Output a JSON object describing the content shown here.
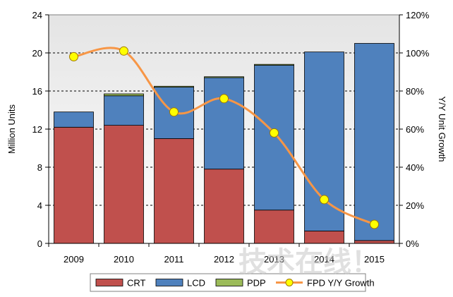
{
  "chart_data": {
    "type": "bar",
    "subtype": "stacked-with-line",
    "categories": [
      "2009",
      "2010",
      "2011",
      "2012",
      "2013",
      "2014",
      "2015"
    ],
    "series": [
      {
        "name": "CRT",
        "color": "#c0504d",
        "values": [
          12.2,
          12.4,
          11.0,
          7.8,
          3.5,
          1.3,
          0.3
        ]
      },
      {
        "name": "LCD",
        "color": "#4f81bd",
        "values": [
          1.6,
          3.1,
          5.4,
          9.6,
          15.2,
          18.8,
          20.7
        ]
      },
      {
        "name": "PDP",
        "color": "#9bbb59",
        "values": [
          0.0,
          0.2,
          0.1,
          0.1,
          0.1,
          0.0,
          0.0
        ]
      }
    ],
    "line_series": {
      "name": "FPD Y/Y Growth",
      "color": "#f79646",
      "marker_color": "#ffff00",
      "values": [
        98,
        101,
        69,
        76,
        58,
        23,
        10
      ]
    },
    "ylabel": "Million Units",
    "ylabel_right": "Y/Y Unit Growth",
    "ylim": [
      0,
      24
    ],
    "ylim_right": [
      0,
      120
    ],
    "yticks": [
      "0",
      "4",
      "8",
      "12",
      "16",
      "20",
      "24"
    ],
    "yticks_right": [
      "0%",
      "20%",
      "40%",
      "60%",
      "80%",
      "100%",
      "120%"
    ],
    "grid": true,
    "legend_position": "bottom"
  },
  "watermark": "技术在线！"
}
